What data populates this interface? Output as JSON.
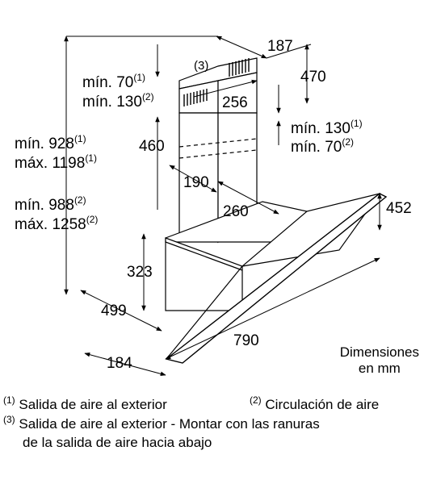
{
  "dimensions": {
    "d187": "187",
    "d470": "470",
    "d256": "256",
    "d460": "460",
    "d190": "190",
    "d260": "260",
    "d452": "452",
    "d323": "323",
    "d499": "499",
    "d790": "790",
    "d184": "184"
  },
  "labels": {
    "note3": "(3)",
    "min70_1_text": "mín. 70",
    "min70_1_sup": "(1)",
    "min130_2_text": "mín. 130",
    "min130_2_sup": "(2)",
    "right_min130_1_text": "mín. 130",
    "right_min130_1_sup": "(1)",
    "right_min70_2_text": "mín. 70",
    "right_min70_2_sup": "(2)",
    "min928_text": "mín. 928",
    "min928_sup": "(1)",
    "max1198_text": "máx. 1198",
    "max1198_sup": "(1)",
    "min988_text": "mín. 988",
    "min988_sup": "(2)",
    "max1258_text": "máx. 1258",
    "max1258_sup": "(2)"
  },
  "units": {
    "line1": "Dimensiones",
    "line2": "en mm"
  },
  "legend": {
    "item1_marker": "(1)",
    "item1_text": "Salida de aire al exterior",
    "item2_marker": "(2)",
    "item2_text": "Circulación de aire",
    "item3_marker": "(3)",
    "item3_text_line1": "Salida de aire al exterior - Montar con las ranuras",
    "item3_text_line2": "de la salida de aire hacia abajo"
  }
}
